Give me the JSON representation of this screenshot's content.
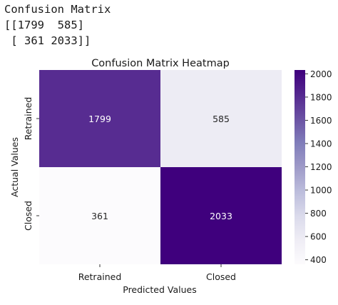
{
  "output": {
    "lines": [
      "Confusion Matrix",
      "[[1799  585]",
      " [ 361 2033]]"
    ]
  },
  "chart_data": {
    "type": "heatmap",
    "title": "Confusion Matrix Heatmap",
    "xlabel": "Predicted Values",
    "ylabel": "Actual Values",
    "x_categories": [
      "Retrained",
      "Closed"
    ],
    "y_categories": [
      "Retrained",
      "Closed"
    ],
    "matrix": [
      [
        1799,
        585
      ],
      [
        361,
        2033
      ]
    ],
    "colormap": "Purples",
    "vmin": 361,
    "vmax": 2033,
    "colorbar_ticks": [
      400,
      600,
      800,
      1000,
      1200,
      1400,
      1600,
      1800,
      2000
    ],
    "annotate": true,
    "grid": false
  }
}
